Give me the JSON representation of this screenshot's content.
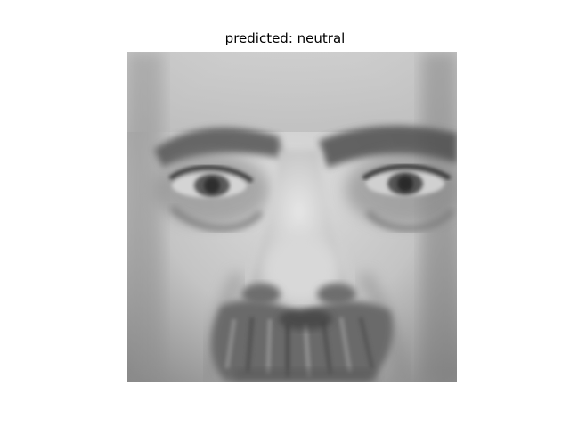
{
  "figure": {
    "title": "predicted: neutral"
  },
  "image": {
    "kind": "grayscale-face-photo",
    "colormap": "gray",
    "axes_visible": false
  }
}
